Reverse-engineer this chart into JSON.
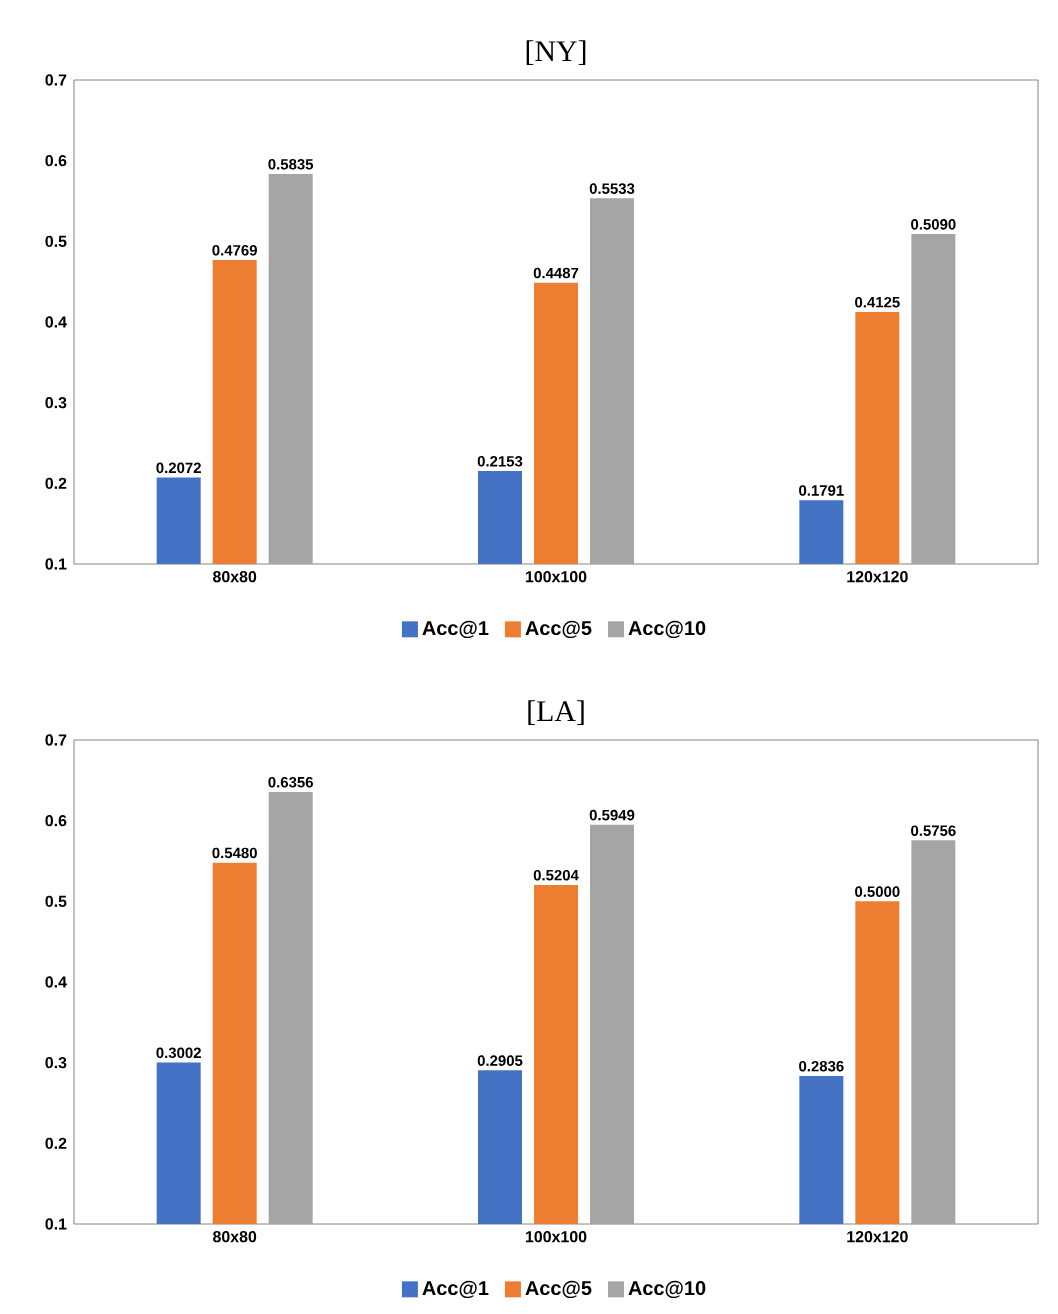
{
  "chart_data": [
    {
      "type": "bar",
      "title": "[NY]",
      "categories": [
        "80x80",
        "100x100",
        "120x120"
      ],
      "series": [
        {
          "name": "Acc@1",
          "color": "#4472c4",
          "values": [
            0.2072,
            0.2153,
            0.1791
          ],
          "value_labels": [
            "0.2072",
            "0.2153",
            "0.1791"
          ]
        },
        {
          "name": "Acc@5",
          "color": "#ed7d31",
          "values": [
            0.4769,
            0.4487,
            0.4125
          ],
          "value_labels": [
            "0.4769",
            "0.4487",
            "0.4125"
          ]
        },
        {
          "name": "Acc@10",
          "color": "#a5a5a5",
          "values": [
            0.5835,
            0.5533,
            0.509
          ],
          "value_labels": [
            "0.5835",
            "0.5533",
            "0.5090"
          ]
        }
      ],
      "ylim": [
        0.1,
        0.7
      ],
      "yticks": [
        0.1,
        0.2,
        0.3,
        0.4,
        0.5,
        0.6,
        0.7
      ],
      "legend": "bottom"
    },
    {
      "type": "bar",
      "title": "[LA]",
      "categories": [
        "80x80",
        "100x100",
        "120x120"
      ],
      "series": [
        {
          "name": "Acc@1",
          "color": "#4472c4",
          "values": [
            0.3002,
            0.2905,
            0.2836
          ],
          "value_labels": [
            "0.3002",
            "0.2905",
            "0.2836"
          ]
        },
        {
          "name": "Acc@5",
          "color": "#ed7d31",
          "values": [
            0.548,
            0.5204,
            0.5
          ],
          "value_labels": [
            "0.5480",
            "0.5204",
            "0.5000"
          ]
        },
        {
          "name": "Acc@10",
          "color": "#a5a5a5",
          "values": [
            0.6356,
            0.5949,
            0.5756
          ],
          "value_labels": [
            "0.6356",
            "0.5949",
            "0.5756"
          ]
        }
      ],
      "ylim": [
        0.1,
        0.7
      ],
      "yticks": [
        0.1,
        0.2,
        0.3,
        0.4,
        0.5,
        0.6,
        0.7
      ],
      "legend": "bottom"
    }
  ]
}
